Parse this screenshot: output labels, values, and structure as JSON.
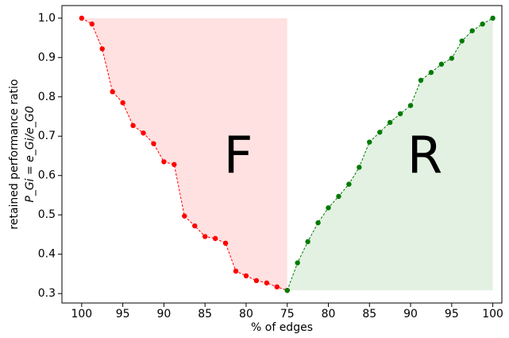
{
  "chart_data": {
    "type": "line",
    "x_label": "% of edges",
    "y_label": "retained performance ratio",
    "y_label_formula": "P_Gi = e_Gi/e_G0",
    "annotations": [
      {
        "text": "F",
        "color": "#ff0000"
      },
      {
        "text": "R",
        "color": "#007a00"
      }
    ],
    "series": [
      {
        "name": "F",
        "color": "#ff0000",
        "fill_color": "#ffe1e1",
        "fill": "above",
        "x": [
          0,
          1.25,
          2.5,
          3.75,
          5,
          6.25,
          7.5,
          8.75,
          10,
          11.25,
          12.5,
          13.75,
          15,
          16.25,
          17.5,
          18.75,
          20,
          21.25,
          22.5,
          23.75,
          25
        ],
        "values": [
          1.0,
          0.985,
          0.922,
          0.813,
          0.785,
          0.727,
          0.708,
          0.681,
          0.635,
          0.628,
          0.497,
          0.472,
          0.445,
          0.44,
          0.428,
          0.357,
          0.345,
          0.333,
          0.327,
          0.317,
          0.308
        ]
      },
      {
        "name": "R",
        "color": "#007a00",
        "fill_color": "#e3f1e3",
        "fill": "below",
        "x": [
          25,
          26.25,
          27.5,
          28.75,
          30,
          31.25,
          32.5,
          33.75,
          35,
          36.25,
          37.5,
          38.75,
          40,
          41.25,
          42.5,
          43.75,
          45,
          46.25,
          47.5,
          48.75,
          50
        ],
        "values": [
          0.308,
          0.378,
          0.432,
          0.48,
          0.518,
          0.547,
          0.578,
          0.621,
          0.685,
          0.71,
          0.735,
          0.757,
          0.778,
          0.842,
          0.862,
          0.883,
          0.898,
          0.942,
          0.968,
          0.985,
          1.0
        ]
      }
    ],
    "xlim": [
      -2.4,
      51.1
    ],
    "ylim": [
      0.276,
      1.032
    ],
    "xticks": [
      {
        "value": 0,
        "label": "100"
      },
      {
        "value": 5,
        "label": "95"
      },
      {
        "value": 10,
        "label": "90"
      },
      {
        "value": 15,
        "label": "85"
      },
      {
        "value": 20,
        "label": "80"
      },
      {
        "value": 25,
        "label": "75"
      },
      {
        "value": 30,
        "label": "80"
      },
      {
        "value": 35,
        "label": "85"
      },
      {
        "value": 40,
        "label": "90"
      },
      {
        "value": 45,
        "label": "95"
      },
      {
        "value": 50,
        "label": "100"
      }
    ],
    "yticks": [
      0.3,
      0.4,
      0.5,
      0.6,
      0.7,
      0.8,
      0.9,
      {
        "value": 1.0,
        "label": "1.0"
      }
    ],
    "grid": false
  }
}
